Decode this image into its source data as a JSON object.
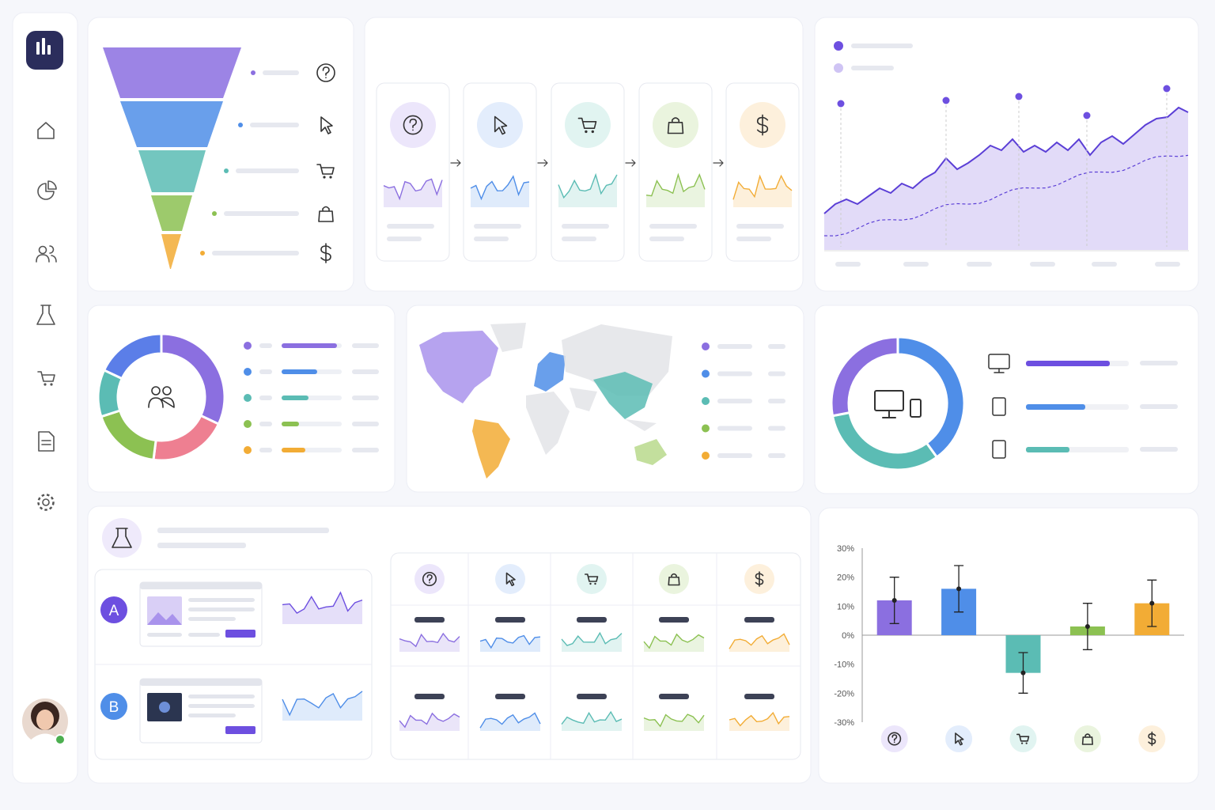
{
  "experiment": {
    "variants": [
      "A",
      "B"
    ]
  },
  "chart_data": [
    {
      "type": "bar",
      "categories": [
        null,
        null,
        null,
        null,
        null
      ],
      "values": [
        12,
        16,
        -13,
        3,
        11
      ],
      "errors": [
        8,
        8,
        7,
        8,
        8
      ],
      "colors": [
        "#8b6fe0",
        "#4f8ee8",
        "#5bbcb4",
        "#8cc152",
        "#f2ac35"
      ],
      "ylim": [
        -30,
        30
      ],
      "yticks": [
        {
          "value": 30,
          "label": "30%"
        },
        {
          "value": 20,
          "label": "20%"
        },
        {
          "value": 10,
          "label": "10%"
        },
        {
          "value": 0,
          "label": "0%"
        },
        {
          "value": -10,
          "label": "-10%"
        },
        {
          "value": -20,
          "label": "-20%"
        },
        {
          "value": -30,
          "label": "-30%"
        }
      ],
      "grid": false
    },
    {
      "type": "pie",
      "values": [
        32,
        20,
        18,
        12,
        18
      ],
      "colors": [
        "#8b6fe0",
        "#ee7f91",
        "#8cc152",
        "#5bbcb4",
        "#5b7ee8"
      ]
    },
    {
      "type": "pie",
      "values": [
        40,
        32,
        28
      ],
      "colors": [
        "#4f8ee8",
        "#5bbcb4",
        "#8b6fe0"
      ]
    }
  ]
}
